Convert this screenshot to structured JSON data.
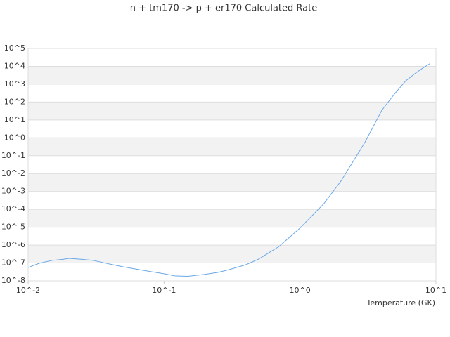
{
  "chart_data": {
    "type": "line",
    "title": "n + tm170 -> p + er170 Calculated Rate",
    "x_label": "Temperature (GK)",
    "x": [
      0.01,
      0.012,
      0.015,
      0.018,
      0.02,
      0.025,
      0.03,
      0.04,
      0.05,
      0.07,
      0.1,
      0.12,
      0.15,
      0.2,
      0.25,
      0.3,
      0.4,
      0.5,
      0.7,
      1,
      1.5,
      2,
      3,
      4,
      5,
      6,
      7,
      8,
      9
    ],
    "values": [
      5.6e-08,
      9.5e-08,
      1.4e-07,
      1.6e-07,
      1.8e-07,
      1.6e-07,
      1.4e-07,
      8.7e-08,
      6.1e-08,
      3.9e-08,
      2.5e-08,
      1.9e-08,
      1.8e-08,
      2.3e-08,
      3e-08,
      4.2e-08,
      8e-08,
      1.7e-07,
      8.3e-07,
      8.9e-06,
      0.00021,
      0.0038,
      0.55,
      35,
      310,
      1550,
      3900,
      8000,
      14000
    ],
    "color": "#6aa8e8",
    "xlim": [
      0.01,
      10
    ],
    "ylim": [
      1e-08,
      100000
    ],
    "xlog": true,
    "ylog": true,
    "bands": true,
    "xticks": [
      {
        "value": 0.01,
        "label": "10^-2"
      },
      {
        "value": 0.1,
        "label": "10^-1"
      },
      {
        "value": 1,
        "label": "10^0"
      },
      {
        "value": 10,
        "label": "10^1"
      }
    ],
    "yticks": [
      {
        "value": 1e-08,
        "label": "10^-8"
      },
      {
        "value": 1e-07,
        "label": "10^-7"
      },
      {
        "value": 1e-06,
        "label": "10^-6"
      },
      {
        "value": 1e-05,
        "label": "10^-5"
      },
      {
        "value": 0.0001,
        "label": "10^-4"
      },
      {
        "value": 0.001,
        "label": "10^-3"
      },
      {
        "value": 0.01,
        "label": "10^-2"
      },
      {
        "value": 0.1,
        "label": "10^-1"
      },
      {
        "value": 1,
        "label": "10^0"
      },
      {
        "value": 10,
        "label": "10^1"
      },
      {
        "value": 100,
        "label": "10^2"
      },
      {
        "value": 1000,
        "label": "10^3"
      },
      {
        "value": 10000,
        "label": "10^4"
      },
      {
        "value": 100000,
        "label": "10^5"
      }
    ]
  }
}
